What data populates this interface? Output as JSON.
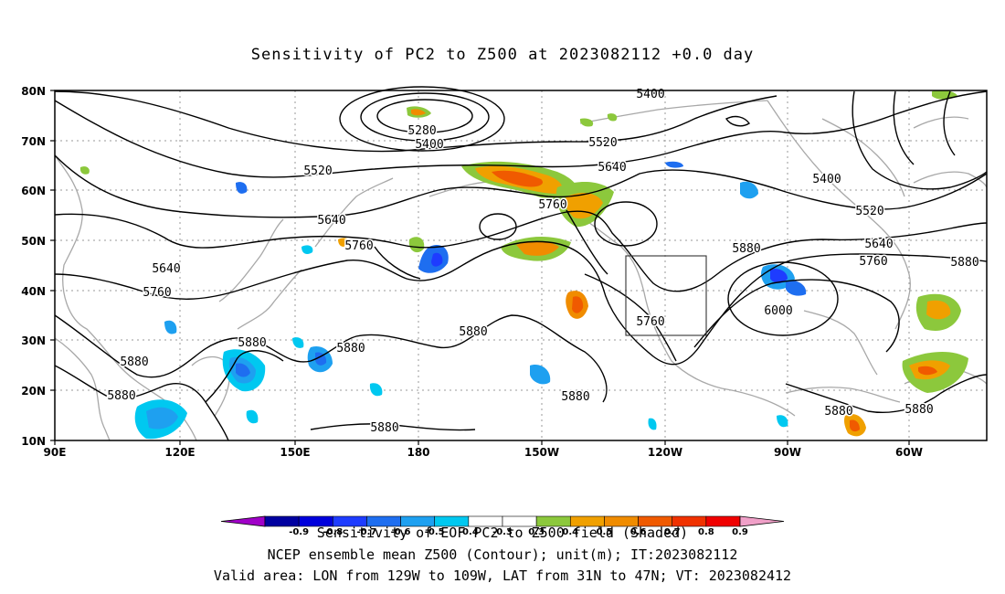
{
  "title": "Sensitivity of PC2 to Z500 at 2023082112 +0.0 day",
  "lat_ticks": [
    "80N",
    "70N",
    "60N",
    "50N",
    "40N",
    "30N",
    "20N",
    "10N"
  ],
  "lon_ticks": [
    "90E",
    "120E",
    "150E",
    "180",
    "150W",
    "120W",
    "90W",
    "60W"
  ],
  "contour_labels": [
    {
      "text": "5400",
      "id": "c5400-top"
    },
    {
      "text": "5280",
      "id": "c5280"
    },
    {
      "text": "5400",
      "id": "c5400-low"
    },
    {
      "text": "5520",
      "id": "c5520-east"
    },
    {
      "text": "5520",
      "id": "c5520-west"
    },
    {
      "text": "5640",
      "id": "c5640-mid"
    },
    {
      "text": "5760",
      "id": "c5760-gulf"
    },
    {
      "text": "5640",
      "id": "c5640-west"
    },
    {
      "text": "5760",
      "id": "c5760-west"
    },
    {
      "text": "5640",
      "id": "c5640-far"
    },
    {
      "text": "5760",
      "id": "c5760-far"
    },
    {
      "text": "5880",
      "id": "c5880-sw"
    },
    {
      "text": "5880",
      "id": "c5880-jp"
    },
    {
      "text": "5880",
      "id": "c5880-mid"
    },
    {
      "text": "5880",
      "id": "c5880-pac"
    },
    {
      "text": "5880",
      "id": "c5880-hi"
    },
    {
      "text": "5880",
      "id": "c5880-sea"
    },
    {
      "text": "5880",
      "id": "c5880-sea2"
    },
    {
      "text": "5400",
      "id": "c5400-east"
    },
    {
      "text": "5520",
      "id": "c5520-ca"
    },
    {
      "text": "5640",
      "id": "c5640-ca"
    },
    {
      "text": "5760",
      "id": "c5760-ca"
    },
    {
      "text": "5880",
      "id": "c5880-atl"
    },
    {
      "text": "5880",
      "id": "c5880-us"
    },
    {
      "text": "6000",
      "id": "c6000"
    },
    {
      "text": "5760",
      "id": "c5760-box"
    },
    {
      "text": "5880",
      "id": "c5880-car"
    },
    {
      "text": "5880",
      "id": "c5880-car2"
    }
  ],
  "colorbar": {
    "colors": [
      "#0000a0",
      "#0000dc",
      "#1e3cff",
      "#1e6ef0",
      "#1ea0f0",
      "#00c8f0",
      "#ffffff",
      "#ffffff",
      "#8cc83c",
      "#f0a000",
      "#f08c00",
      "#f05a00",
      "#f03200",
      "#f00000"
    ],
    "low_color": "#a000c8",
    "high_color": "#f0a0c8",
    "labels": [
      "-0.9",
      "-0.8",
      "-0.7",
      "-0.6",
      "-0.5",
      "-0.4",
      "-0.3",
      "0.3",
      "0.4",
      "0.5",
      "0.6",
      "0.7",
      "0.8",
      "0.9"
    ]
  },
  "caption1": "Sensitivity of EOF PC2 to Z500 field (Shaded)",
  "caption2": "NCEP ensemble mean Z500 (Contour); unit(m); IT:2023082112",
  "caption3": "Valid area: LON from 129W to 109W, LAT from 31N to 47N; VT: 2023082412"
}
